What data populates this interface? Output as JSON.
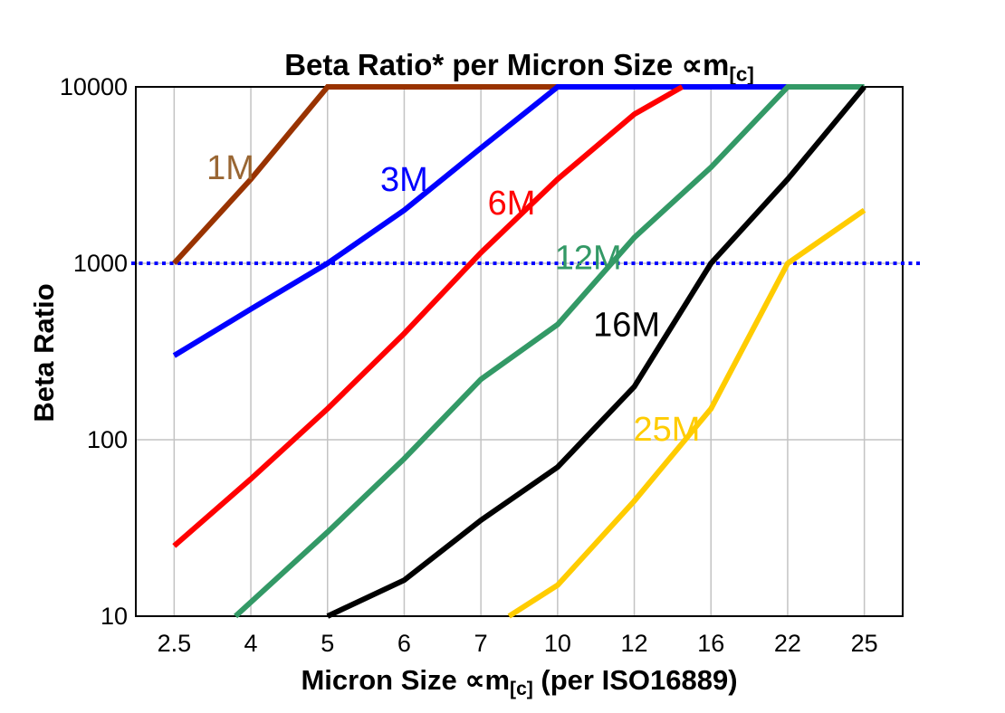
{
  "title": {
    "text": "Beta Ratio* per Micron Size ∝m",
    "sub": "[c]"
  },
  "y_axis": {
    "title": "Beta Ratio",
    "scale": "log",
    "ticks": [
      "10000",
      "1000",
      "100",
      "10"
    ],
    "tick_values": [
      10000,
      1000,
      100,
      10
    ]
  },
  "x_axis": {
    "title_pre": "Micron Size ∝m",
    "title_sub": "[c]",
    "title_post": " (per ISO16889)",
    "ticks": [
      "2.5",
      "4",
      "5",
      "6",
      "7",
      "10",
      "12",
      "16",
      "22",
      "25"
    ]
  },
  "chart_data": {
    "type": "line",
    "title": "Beta Ratio* per Micron Size ∝m[c]",
    "xlabel": "Micron Size ∝m[c] (per ISO16889)",
    "ylabel": "Beta Ratio",
    "x_scale": "categorical",
    "y_scale": "log",
    "ylim": [
      10,
      10000
    ],
    "grid": true,
    "categories": [
      2.5,
      4,
      5,
      6,
      7,
      10,
      12,
      16,
      22,
      25
    ],
    "reference_line": {
      "y": 1000,
      "style": "dotted",
      "color": "#0000FF"
    },
    "colors": {
      "grid": "#C3C3C3",
      "border": "#000000",
      "background": "#FFFFFF"
    },
    "series": [
      {
        "name": "1M",
        "color": "#993300",
        "label_color": "#996633",
        "label_at": {
          "x": 3.6,
          "y": 3500
        },
        "points": [
          [
            2.5,
            1000
          ],
          [
            4,
            3000
          ],
          [
            5,
            10000
          ],
          [
            10,
            10000
          ]
        ]
      },
      {
        "name": "3M",
        "color": "#0000FF",
        "label_color": "#0000FF",
        "label_at": {
          "x": 6.0,
          "y": 3000
        },
        "points": [
          [
            2.5,
            300
          ],
          [
            4,
            550
          ],
          [
            5,
            1000
          ],
          [
            6,
            2000
          ],
          [
            7,
            4500
          ],
          [
            10,
            10000
          ],
          [
            22,
            10000
          ]
        ]
      },
      {
        "name": "6M",
        "color": "#FF0000",
        "label_color": "#FF0000",
        "label_at": {
          "x": 8.2,
          "y": 2200
        },
        "points": [
          [
            2.5,
            25
          ],
          [
            4,
            60
          ],
          [
            5,
            150
          ],
          [
            6,
            400
          ],
          [
            7,
            1150
          ],
          [
            10,
            3000
          ],
          [
            12,
            7000
          ],
          [
            14.5,
            10000
          ]
        ]
      },
      {
        "name": "12M",
        "color": "#339966",
        "label_color": "#339966",
        "label_at": {
          "x": 10.8,
          "y": 1080
        },
        "points": [
          [
            3.7,
            10
          ],
          [
            5,
            30
          ],
          [
            6,
            78
          ],
          [
            7,
            220
          ],
          [
            10,
            450
          ],
          [
            12,
            1400
          ],
          [
            16,
            3500
          ],
          [
            22,
            10000
          ],
          [
            25,
            10000
          ]
        ]
      },
      {
        "name": "16M",
        "color": "#000000",
        "label_color": "#000000",
        "label_at": {
          "x": 11.8,
          "y": 450
        },
        "points": [
          [
            5,
            10
          ],
          [
            6,
            16
          ],
          [
            7,
            35
          ],
          [
            10,
            70
          ],
          [
            12,
            200
          ],
          [
            16,
            1000
          ],
          [
            22,
            3000
          ],
          [
            25,
            10000
          ]
        ]
      },
      {
        "name": "25M",
        "color": "#FFCC00",
        "label_color": "#FFCC00",
        "label_at": {
          "x": 13.7,
          "y": 115
        },
        "points": [
          [
            8.1,
            10
          ],
          [
            10,
            15
          ],
          [
            12,
            45
          ],
          [
            16,
            150
          ],
          [
            22,
            1000
          ],
          [
            25,
            2000
          ]
        ]
      }
    ]
  }
}
